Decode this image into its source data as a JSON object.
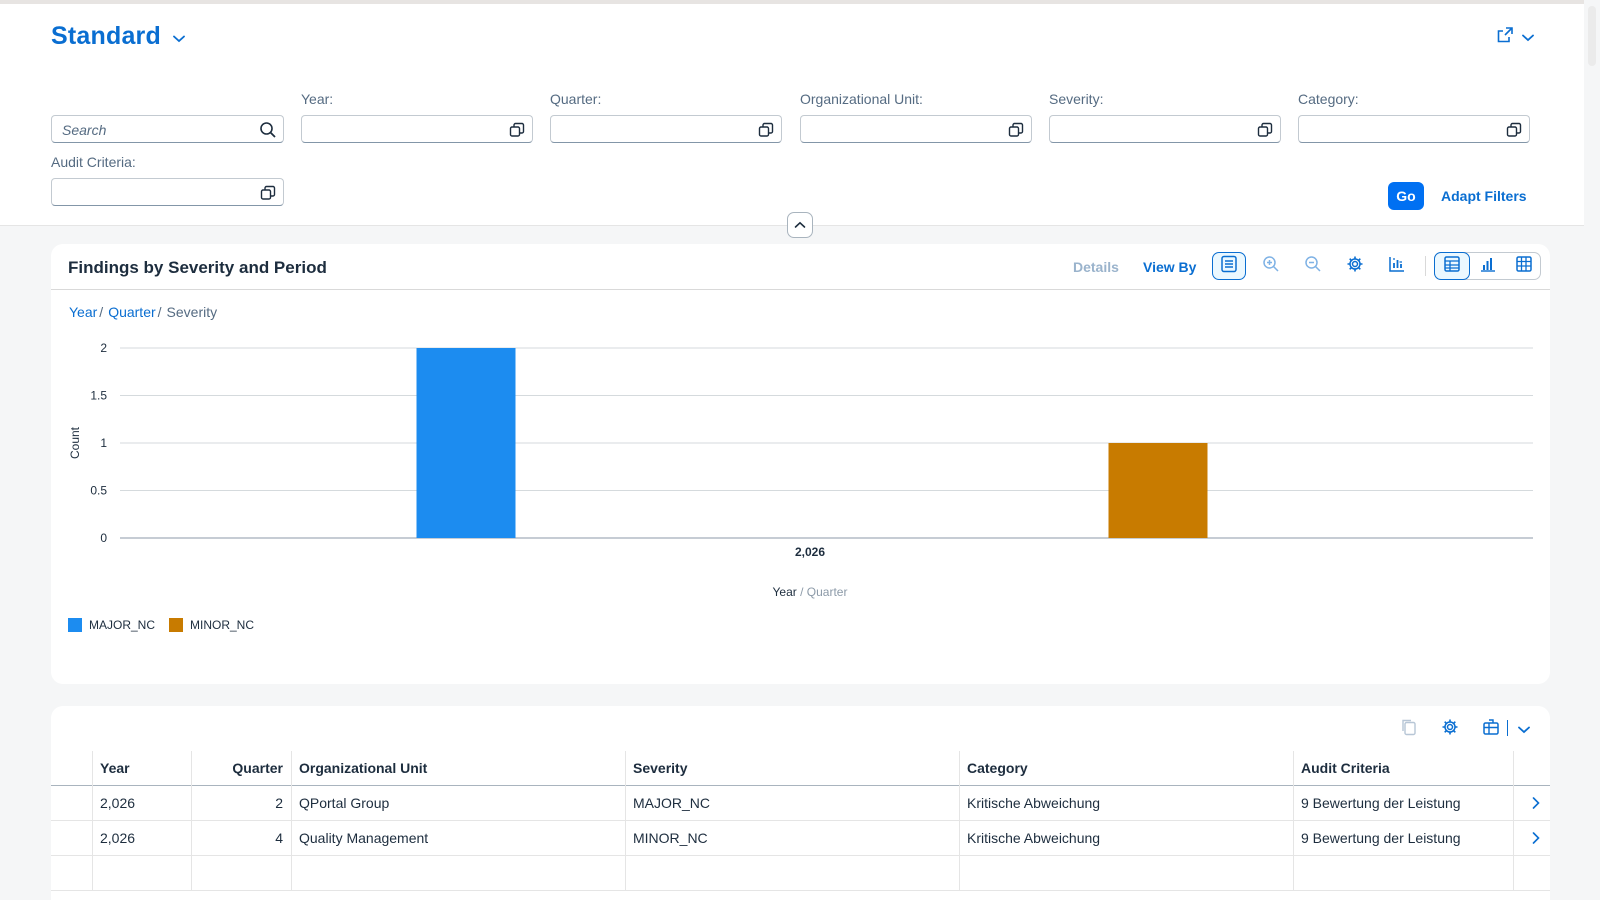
{
  "header": {
    "variant_title": "Standard",
    "search_placeholder": "Search",
    "filters": [
      {
        "label": "Year:",
        "value": ""
      },
      {
        "label": "Quarter:",
        "value": ""
      },
      {
        "label": "Organizational Unit:",
        "value": ""
      },
      {
        "label": "Severity:",
        "value": ""
      },
      {
        "label": "Category:",
        "value": ""
      },
      {
        "label": "Audit Criteria:",
        "value": ""
      }
    ],
    "go_label": "Go",
    "adapt_filters_label": "Adapt Filters"
  },
  "chart_card": {
    "title": "Findings by Severity and Period",
    "details_label": "Details",
    "view_by_label": "View By",
    "breadcrumbs": {
      "year": "Year",
      "quarter": "Quarter",
      "severity": "Severity",
      "sep": "/"
    }
  },
  "chart_data": {
    "type": "bar",
    "categories": [
      "2,026"
    ],
    "series": [
      {
        "name": "MAJOR_NC",
        "values": [
          2
        ],
        "color": "#1c8cf0"
      },
      {
        "name": "MINOR_NC",
        "values": [
          1
        ],
        "color": "#c87b00"
      }
    ],
    "ylabel": "Count",
    "xlabel": "Year",
    "xlabel_secondary": "Quarter",
    "xlabel_sep": "/",
    "ylim": [
      0,
      2
    ],
    "yticks": [
      "0",
      "0.5",
      "1",
      "1.5",
      "2"
    ],
    "ytick_values": [
      0,
      0.5,
      1,
      1.5,
      2
    ],
    "grid": true,
    "legend": "bottom-left"
  },
  "table": {
    "columns": [
      "Year",
      "Quarter",
      "Organizational Unit",
      "Severity",
      "Category",
      "Audit Criteria"
    ],
    "rows": [
      [
        "2,026",
        "2",
        "QPortal Group",
        "MAJOR_NC",
        "Kritische Abweichung",
        "9 Bewertung der Leistung"
      ],
      [
        "2,026",
        "4",
        "Quality Management",
        "MINOR_NC",
        "Kritische Abweichung",
        "9 Bewertung der Leistung"
      ]
    ]
  },
  "colors": {
    "accent": "#0a6ed1",
    "major": "#1c8cf0",
    "minor": "#c87b00"
  }
}
